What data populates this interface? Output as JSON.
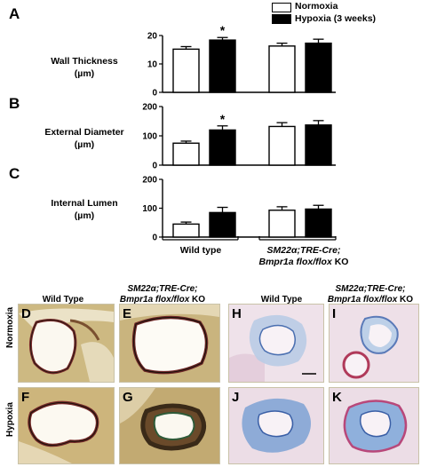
{
  "panel_letters": {
    "a": "A",
    "b": "B",
    "c": "C"
  },
  "legend": {
    "normoxia": "Normoxia",
    "hypoxia": "Hypoxia (3 weeks)",
    "normoxia_color": "#ffffff",
    "hypoxia_color": "#000000"
  },
  "ylabels": {
    "wall": {
      "line1": "Wall Thickness",
      "line2": "(µm)"
    },
    "external": {
      "line1": "External Diameter",
      "line2": "(µm)"
    },
    "internal": {
      "line1": "Internal Lumen",
      "line2": "(µm)"
    }
  },
  "groups": {
    "wt": "Wild type",
    "ko_line1": "SM22α;TRE-Cre;",
    "ko_line2_italic": "Bmpr1a flox/flox",
    "ko_line2_suffix": " KO"
  },
  "chart_data": [
    {
      "type": "bar",
      "ylabel": "Wall Thickness (µm)",
      "categories": [
        "Wild type",
        "SM22α;TRE-Cre; Bmpr1a flox/flox KO"
      ],
      "ylim": [
        0,
        20
      ],
      "yticks": [
        "0",
        "10",
        "20"
      ],
      "series": [
        {
          "name": "Normoxia",
          "values": [
            15.2,
            16.3
          ],
          "errors": [
            0.9,
            1.0
          ]
        },
        {
          "name": "Hypoxia (3 weeks)",
          "values": [
            18.4,
            17.3
          ],
          "errors": [
            0.9,
            1.4
          ]
        }
      ],
      "annotations": [
        {
          "series": 1,
          "category": 0,
          "text": "*"
        }
      ]
    },
    {
      "type": "bar",
      "ylabel": "External Diameter (µm)",
      "categories": [
        "Wild type",
        "SM22α;TRE-Cre; Bmpr1a flox/flox KO"
      ],
      "ylim": [
        0,
        200
      ],
      "yticks": [
        "0",
        "100",
        "200"
      ],
      "series": [
        {
          "name": "Normoxia",
          "values": [
            75,
            132
          ],
          "errors": [
            7,
            13
          ]
        },
        {
          "name": "Hypoxia (3 weeks)",
          "values": [
            120,
            137
          ],
          "errors": [
            14,
            15
          ]
        }
      ],
      "annotations": [
        {
          "series": 1,
          "category": 0,
          "text": "*"
        }
      ]
    },
    {
      "type": "bar",
      "ylabel": "Internal Lumen (µm)",
      "categories": [
        "Wild type",
        "SM22α;TRE-Cre; Bmpr1a flox/flox KO"
      ],
      "ylim": [
        0,
        200
      ],
      "yticks": [
        "0",
        "100",
        "200"
      ],
      "series": [
        {
          "name": "Normoxia",
          "values": [
            45,
            93
          ],
          "errors": [
            7,
            12
          ]
        },
        {
          "name": "Hypoxia (3 weeks)",
          "values": [
            85,
            97
          ],
          "errors": [
            18,
            13
          ]
        }
      ],
      "annotations": []
    }
  ],
  "micrographs": {
    "col_left_wt": "Wild Type",
    "col_left_ko_line1": "SM22α;TRE-Cre;",
    "col_left_ko_line2_italic": "Bmpr1a flox/flox",
    "col_left_ko_suffix": " KO",
    "col_right_wt": "Wild Type",
    "col_right_ko_line1": "SM22α;TRE-Cre;",
    "col_right_ko_line2_italic": "Bmpr1a flox/flox",
    "col_right_ko_suffix": " KO",
    "row_top": "Normoxia",
    "row_bottom": "Hypoxia",
    "letters": {
      "D": "D",
      "E": "E",
      "F": "F",
      "G": "G",
      "H": "H",
      "I": "I",
      "J": "J",
      "K": "K"
    }
  }
}
